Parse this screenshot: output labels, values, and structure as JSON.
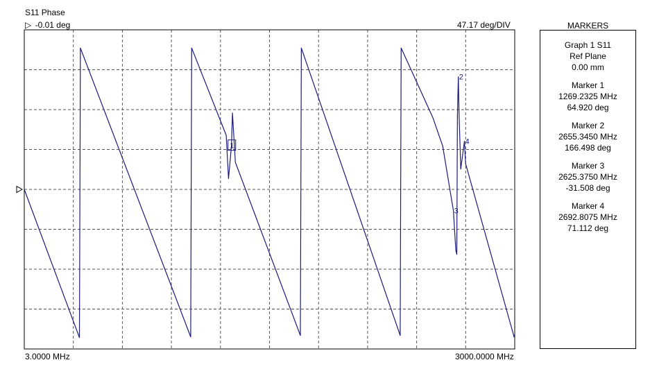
{
  "chart_data": {
    "type": "line",
    "title": "S11 Phase",
    "reference_label": "-0.01 deg",
    "scale_label": "47.17 deg/DIV",
    "x_start_label": "3.0000 MHz",
    "x_stop_label": "3000.0000 MHz",
    "xlim": [
      3.0,
      3000.0
    ],
    "ylim": [
      -235.86,
      235.84
    ],
    "grid": true,
    "series": [
      {
        "values": [
          [
            3.0,
            -0.01
          ],
          [
            340.0,
            -219.0
          ],
          [
            346.0,
            209.0
          ],
          [
            1020.0,
            -218.0
          ],
          [
            1026.0,
            209.0
          ],
          [
            1237.0,
            80.0
          ],
          [
            1251.0,
            16.0
          ],
          [
            1269.2325,
            64.92
          ],
          [
            1275.0,
            113.0
          ],
          [
            1293.0,
            40.0
          ],
          [
            1690.0,
            -216.0
          ],
          [
            1696.0,
            209.0
          ],
          [
            2300.0,
            -216.0
          ],
          [
            2306.0,
            209.0
          ],
          [
            2500.0,
            106.0
          ],
          [
            2560.0,
            64.0
          ],
          [
            2625.375,
            -31.508
          ],
          [
            2640.0,
            -90.0
          ],
          [
            2646.0,
            -96.0
          ],
          [
            2650.0,
            108.0
          ],
          [
            2655.345,
            166.498
          ],
          [
            2660.0,
            110.0
          ],
          [
            2670.0,
            30.0
          ],
          [
            2692.8075,
            71.112
          ],
          [
            2700.0,
            38.0
          ],
          [
            2996.0,
            -218.0
          ],
          [
            3000.0,
            -214.0
          ]
        ]
      }
    ],
    "markers": [
      {
        "id": "1",
        "x": 1269.2325,
        "y": 64.92,
        "boxed": true
      },
      {
        "id": "2",
        "x": 2655.345,
        "y": 166.498,
        "boxed": false
      },
      {
        "id": "3",
        "x": 2625.375,
        "y": -31.508,
        "boxed": false
      },
      {
        "id": "4",
        "x": 2692.8075,
        "y": 71.112,
        "boxed": false
      }
    ]
  },
  "panel": {
    "heading": "MARKERS",
    "graph": "Graph 1 S11",
    "ref_plane_label": "Ref Plane",
    "ref_plane_value": "0.00 mm",
    "markers": [
      {
        "label": "Marker  1",
        "freq": "1269.2325 MHz",
        "value": "64.920 deg"
      },
      {
        "label": "Marker  2",
        "freq": "2655.3450 MHz",
        "value": "166.498 deg"
      },
      {
        "label": "Marker  3",
        "freq": "2625.3750 MHz",
        "value": "-31.508 deg"
      },
      {
        "label": "Marker  4",
        "freq": "2692.8075 MHz",
        "value": "71.112 deg"
      }
    ]
  },
  "colors": {
    "trace": "#1a1a7a",
    "grid": "#555555",
    "frame": "#000000",
    "marker_box": "#1a1a7a"
  }
}
